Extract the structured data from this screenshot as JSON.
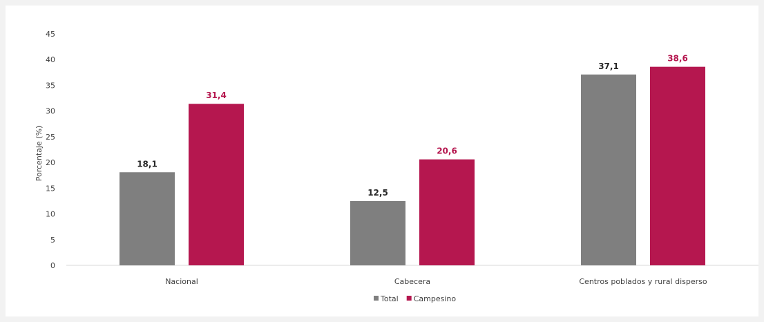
{
  "chart_data": {
    "type": "bar",
    "ylabel": "Porcentaje (%)",
    "ylim": [
      0,
      45
    ],
    "yticks": [
      0,
      5,
      10,
      15,
      20,
      25,
      30,
      35,
      40,
      45
    ],
    "categories": [
      "Nacional",
      "Cabecera",
      "Centros poblados y rural disperso"
    ],
    "series": [
      {
        "name": "Total",
        "color": "#7f7f7f",
        "label_color": "#262626",
        "values": [
          18.1,
          12.5,
          37.1
        ],
        "labels": [
          "18,1",
          "12,5",
          "37,1"
        ]
      },
      {
        "name": "Campesino",
        "color": "#b5174f",
        "label_color": "#b5174f",
        "values": [
          31.4,
          20.6,
          38.6
        ],
        "labels": [
          "31,4",
          "20,6",
          "38,6"
        ]
      }
    ],
    "grid": false,
    "legend_position": "bottom-center"
  }
}
